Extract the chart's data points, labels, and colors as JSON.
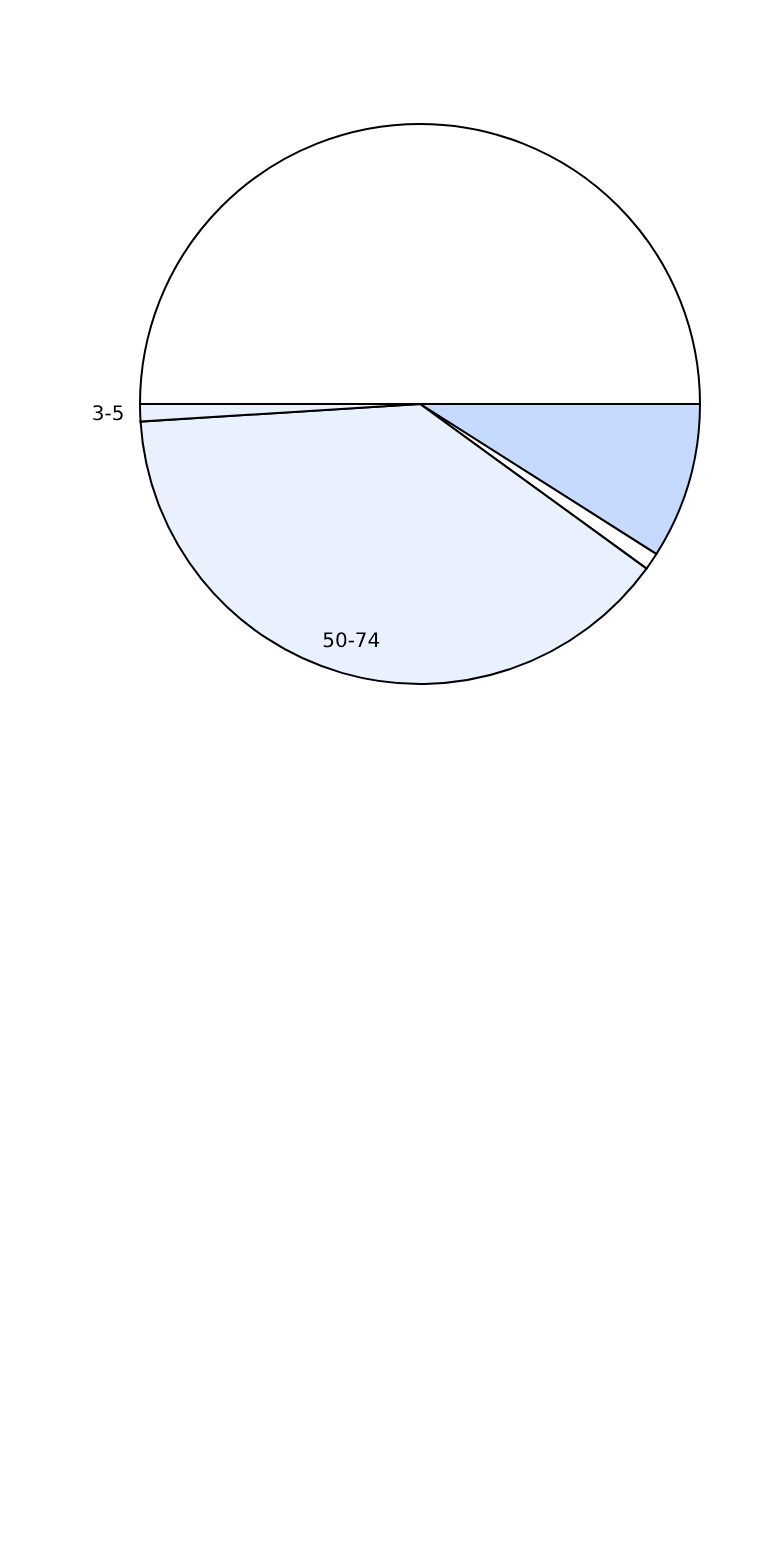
{
  "chart_data": {
    "type": "pie",
    "categories": [
      null,
      null,
      "50-74",
      "3-5",
      null
    ],
    "values": [
      9,
      1,
      39,
      1,
      50
    ],
    "colors": [
      "#c6d9fe",
      "#ffffff",
      "#eaf1fe",
      "#eaf1fe",
      "#ffffff"
    ]
  }
}
